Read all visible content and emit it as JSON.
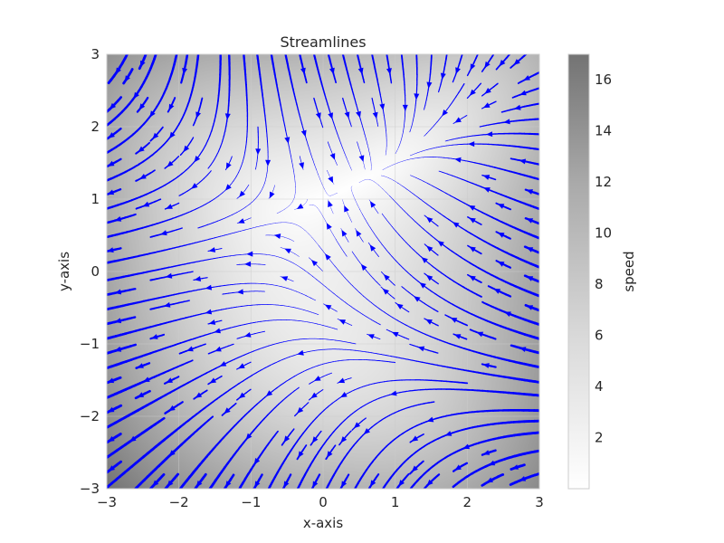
{
  "chart_data": {
    "type": "streamplot",
    "title": "Streamlines",
    "xlabel": "x-axis",
    "ylabel": "y-axis",
    "xlim": [
      -3,
      3
    ],
    "ylim": [
      -3,
      3
    ],
    "x_ticks": [
      -3,
      -2,
      -1,
      0,
      1,
      2,
      3
    ],
    "y_ticks": [
      -3,
      -2,
      -1,
      0,
      1,
      2,
      3
    ],
    "x_tick_labels": [
      "−3",
      "−2",
      "−1",
      "0",
      "1",
      "2",
      "3"
    ],
    "y_tick_labels": [
      "−3",
      "−2",
      "−1",
      "0",
      "1",
      "2",
      "3"
    ],
    "grid": true,
    "field": {
      "u": "-1 - x^2 + y",
      "v": "1 + x - y^2",
      "speed": "sqrt(u^2 + v^2)"
    },
    "background": "speed",
    "background_colormap": "Greys",
    "stream_color": "#0000ff",
    "line_width": "scales with speed",
    "colorbar": {
      "label": "speed",
      "ticks": [
        2,
        4,
        6,
        8,
        10,
        12,
        14,
        16
      ],
      "tick_labels": [
        "2",
        "4",
        "6",
        "8",
        "10",
        "12",
        "14",
        "16"
      ],
      "range": [
        0,
        17
      ]
    }
  }
}
